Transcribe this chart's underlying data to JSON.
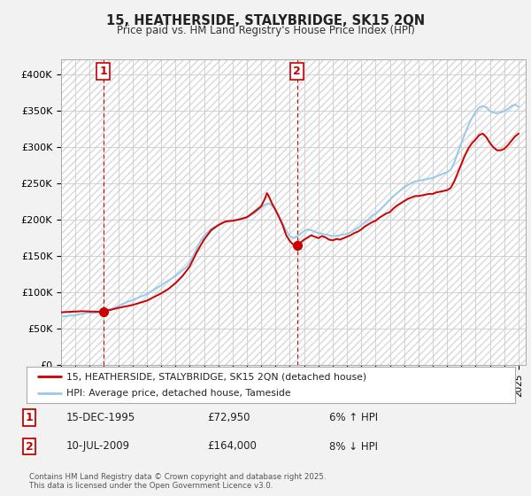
{
  "title1": "15, HEATHERSIDE, STALYBRIDGE, SK15 2QN",
  "title2": "Price paid vs. HM Land Registry's House Price Index (HPI)",
  "yticks": [
    0,
    50000,
    100000,
    150000,
    200000,
    250000,
    300000,
    350000,
    400000
  ],
  "ytick_labels": [
    "£0",
    "£50K",
    "£100K",
    "£150K",
    "£200K",
    "£250K",
    "£300K",
    "£350K",
    "£400K"
  ],
  "bg_color": "#f2f2f2",
  "plot_bg": "#ffffff",
  "hpi_color": "#99c9e8",
  "price_color": "#cc0000",
  "marker1_year": 1995.96,
  "marker1_value": 72950,
  "marker2_year": 2009.52,
  "marker2_value": 164000,
  "legend_label1": "15, HEATHERSIDE, STALYBRIDGE, SK15 2QN (detached house)",
  "legend_label2": "HPI: Average price, detached house, Tameside",
  "annotation1_date": "15-DEC-1995",
  "annotation1_price": "£72,950",
  "annotation1_hpi": "6% ↑ HPI",
  "annotation2_date": "10-JUL-2009",
  "annotation2_price": "£164,000",
  "annotation2_hpi": "8% ↓ HPI",
  "footer": "Contains HM Land Registry data © Crown copyright and database right 2025.\nThis data is licensed under the Open Government Licence v3.0.",
  "hpi_data": [
    [
      1993.0,
      66000
    ],
    [
      1993.25,
      66500
    ],
    [
      1993.5,
      67000
    ],
    [
      1993.75,
      67500
    ],
    [
      1994.0,
      68000
    ],
    [
      1994.25,
      69000
    ],
    [
      1994.5,
      70000
    ],
    [
      1994.75,
      71000
    ],
    [
      1995.0,
      71500
    ],
    [
      1995.25,
      71000
    ],
    [
      1995.5,
      71500
    ],
    [
      1995.75,
      72000
    ],
    [
      1996.0,
      73500
    ],
    [
      1996.25,
      75000
    ],
    [
      1996.5,
      76500
    ],
    [
      1996.75,
      78000
    ],
    [
      1997.0,
      80500
    ],
    [
      1997.25,
      83000
    ],
    [
      1997.5,
      85000
    ],
    [
      1997.75,
      87000
    ],
    [
      1998.0,
      89000
    ],
    [
      1998.25,
      91000
    ],
    [
      1998.5,
      93000
    ],
    [
      1998.75,
      95000
    ],
    [
      1999.0,
      97000
    ],
    [
      1999.25,
      100000
    ],
    [
      1999.5,
      103000
    ],
    [
      1999.75,
      106000
    ],
    [
      2000.0,
      109000
    ],
    [
      2000.25,
      112500
    ],
    [
      2000.5,
      115500
    ],
    [
      2000.75,
      118500
    ],
    [
      2001.0,
      122000
    ],
    [
      2001.25,
      126000
    ],
    [
      2001.5,
      130000
    ],
    [
      2001.75,
      134000
    ],
    [
      2002.0,
      140000
    ],
    [
      2002.25,
      150000
    ],
    [
      2002.5,
      160000
    ],
    [
      2002.75,
      170000
    ],
    [
      2003.0,
      177000
    ],
    [
      2003.25,
      182000
    ],
    [
      2003.5,
      187000
    ],
    [
      2003.75,
      190000
    ],
    [
      2004.0,
      192000
    ],
    [
      2004.25,
      195000
    ],
    [
      2004.5,
      197000
    ],
    [
      2004.75,
      198000
    ],
    [
      2005.0,
      198000
    ],
    [
      2005.25,
      199000
    ],
    [
      2005.5,
      200000
    ],
    [
      2005.75,
      201000
    ],
    [
      2006.0,
      202500
    ],
    [
      2006.25,
      205000
    ],
    [
      2006.5,
      208000
    ],
    [
      2006.75,
      212000
    ],
    [
      2007.0,
      216000
    ],
    [
      2007.25,
      220000
    ],
    [
      2007.5,
      222000
    ],
    [
      2007.75,
      219000
    ],
    [
      2008.0,
      212000
    ],
    [
      2008.25,
      203000
    ],
    [
      2008.5,
      194000
    ],
    [
      2008.75,
      184000
    ],
    [
      2009.0,
      177000
    ],
    [
      2009.25,
      174000
    ],
    [
      2009.5,
      176000
    ],
    [
      2009.75,
      180000
    ],
    [
      2010.0,
      184000
    ],
    [
      2010.25,
      186000
    ],
    [
      2010.5,
      185000
    ],
    [
      2010.75,
      183000
    ],
    [
      2011.0,
      181000
    ],
    [
      2011.25,
      180000
    ],
    [
      2011.5,
      179000
    ],
    [
      2011.75,
      178000
    ],
    [
      2012.0,
      177000
    ],
    [
      2012.25,
      177000
    ],
    [
      2012.5,
      178000
    ],
    [
      2012.75,
      179000
    ],
    [
      2013.0,
      180000
    ],
    [
      2013.25,
      182000
    ],
    [
      2013.5,
      185000
    ],
    [
      2013.75,
      188000
    ],
    [
      2014.0,
      192000
    ],
    [
      2014.25,
      196000
    ],
    [
      2014.5,
      200000
    ],
    [
      2014.75,
      205000
    ],
    [
      2015.0,
      208000
    ],
    [
      2015.25,
      212000
    ],
    [
      2015.5,
      217000
    ],
    [
      2015.75,
      222000
    ],
    [
      2016.0,
      227000
    ],
    [
      2016.25,
      232000
    ],
    [
      2016.5,
      236000
    ],
    [
      2016.75,
      240000
    ],
    [
      2017.0,
      244000
    ],
    [
      2017.25,
      247000
    ],
    [
      2017.5,
      250000
    ],
    [
      2017.75,
      252000
    ],
    [
      2018.0,
      253000
    ],
    [
      2018.25,
      254000
    ],
    [
      2018.5,
      255000
    ],
    [
      2018.75,
      256000
    ],
    [
      2019.0,
      257000
    ],
    [
      2019.25,
      259000
    ],
    [
      2019.5,
      261000
    ],
    [
      2019.75,
      263000
    ],
    [
      2020.0,
      265000
    ],
    [
      2020.25,
      268000
    ],
    [
      2020.5,
      278000
    ],
    [
      2020.75,
      292000
    ],
    [
      2021.0,
      305000
    ],
    [
      2021.25,
      318000
    ],
    [
      2021.5,
      330000
    ],
    [
      2021.75,
      340000
    ],
    [
      2022.0,
      348000
    ],
    [
      2022.25,
      354000
    ],
    [
      2022.5,
      356000
    ],
    [
      2022.75,
      354000
    ],
    [
      2023.0,
      349000
    ],
    [
      2023.25,
      347000
    ],
    [
      2023.5,
      346000
    ],
    [
      2023.75,
      347000
    ],
    [
      2024.0,
      349000
    ],
    [
      2024.25,
      352000
    ],
    [
      2024.5,
      356000
    ],
    [
      2024.75,
      358000
    ],
    [
      2025.0,
      355000
    ]
  ],
  "price_data": [
    [
      1993.0,
      72000
    ],
    [
      1993.5,
      72500
    ],
    [
      1994.0,
      73000
    ],
    [
      1994.5,
      73500
    ],
    [
      1995.0,
      73000
    ],
    [
      1995.5,
      72800
    ],
    [
      1995.96,
      72950
    ],
    [
      1996.0,
      73500
    ],
    [
      1996.5,
      75500
    ],
    [
      1997.0,
      78000
    ],
    [
      1997.5,
      80000
    ],
    [
      1998.0,
      82000
    ],
    [
      1998.5,
      85000
    ],
    [
      1999.0,
      88000
    ],
    [
      1999.5,
      93000
    ],
    [
      2000.0,
      98000
    ],
    [
      2000.5,
      104000
    ],
    [
      2001.0,
      112000
    ],
    [
      2001.5,
      122000
    ],
    [
      2002.0,
      135000
    ],
    [
      2002.5,
      155000
    ],
    [
      2003.0,
      172000
    ],
    [
      2003.5,
      185000
    ],
    [
      2004.0,
      192000
    ],
    [
      2004.5,
      197000
    ],
    [
      2005.0,
      198000
    ],
    [
      2005.5,
      200000
    ],
    [
      2006.0,
      203000
    ],
    [
      2006.5,
      210000
    ],
    [
      2007.0,
      218000
    ],
    [
      2007.25,
      228000
    ],
    [
      2007.4,
      236000
    ],
    [
      2007.5,
      233000
    ],
    [
      2007.75,
      222000
    ],
    [
      2008.0,
      213000
    ],
    [
      2008.25,
      203000
    ],
    [
      2008.5,
      192000
    ],
    [
      2008.75,
      178000
    ],
    [
      2009.0,
      170000
    ],
    [
      2009.25,
      165000
    ],
    [
      2009.52,
      164000
    ],
    [
      2009.6,
      165000
    ],
    [
      2009.75,
      168000
    ],
    [
      2010.0,
      172000
    ],
    [
      2010.25,
      175000
    ],
    [
      2010.5,
      178000
    ],
    [
      2010.75,
      176000
    ],
    [
      2011.0,
      174000
    ],
    [
      2011.25,
      177000
    ],
    [
      2011.5,
      175000
    ],
    [
      2011.75,
      172000
    ],
    [
      2012.0,
      171000
    ],
    [
      2012.25,
      173000
    ],
    [
      2012.5,
      172000
    ],
    [
      2012.75,
      174000
    ],
    [
      2013.0,
      176000
    ],
    [
      2013.25,
      178000
    ],
    [
      2013.5,
      181000
    ],
    [
      2013.75,
      183000
    ],
    [
      2014.0,
      186000
    ],
    [
      2014.25,
      190000
    ],
    [
      2014.5,
      193000
    ],
    [
      2014.75,
      196000
    ],
    [
      2015.0,
      198000
    ],
    [
      2015.25,
      202000
    ],
    [
      2015.5,
      205000
    ],
    [
      2015.75,
      208000
    ],
    [
      2016.0,
      210000
    ],
    [
      2016.25,
      215000
    ],
    [
      2016.5,
      219000
    ],
    [
      2016.75,
      222000
    ],
    [
      2017.0,
      225000
    ],
    [
      2017.25,
      228000
    ],
    [
      2017.5,
      230000
    ],
    [
      2017.75,
      232000
    ],
    [
      2018.0,
      232000
    ],
    [
      2018.25,
      233000
    ],
    [
      2018.5,
      234000
    ],
    [
      2018.75,
      235000
    ],
    [
      2019.0,
      235000
    ],
    [
      2019.25,
      237000
    ],
    [
      2019.5,
      238000
    ],
    [
      2019.75,
      239000
    ],
    [
      2020.0,
      240000
    ],
    [
      2020.25,
      243000
    ],
    [
      2020.5,
      252000
    ],
    [
      2020.75,
      264000
    ],
    [
      2021.0,
      276000
    ],
    [
      2021.25,
      288000
    ],
    [
      2021.5,
      298000
    ],
    [
      2021.75,
      305000
    ],
    [
      2022.0,
      310000
    ],
    [
      2022.25,
      316000
    ],
    [
      2022.5,
      318000
    ],
    [
      2022.75,
      313000
    ],
    [
      2023.0,
      305000
    ],
    [
      2023.25,
      299000
    ],
    [
      2023.5,
      295000
    ],
    [
      2023.75,
      295000
    ],
    [
      2024.0,
      297000
    ],
    [
      2024.25,
      302000
    ],
    [
      2024.5,
      308000
    ],
    [
      2024.75,
      314000
    ],
    [
      2025.0,
      318000
    ]
  ]
}
